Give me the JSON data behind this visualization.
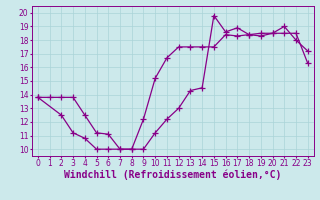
{
  "xlabel": "Windchill (Refroidissement éolien,°C)",
  "bg_color": "#cce9eb",
  "line_color": "#880088",
  "grid_color": "#aad4d8",
  "xlim": [
    -0.5,
    23.5
  ],
  "ylim": [
    9.5,
    20.5
  ],
  "xticks": [
    0,
    1,
    2,
    3,
    4,
    5,
    6,
    7,
    8,
    9,
    10,
    11,
    12,
    13,
    14,
    15,
    16,
    17,
    18,
    19,
    20,
    21,
    22,
    23
  ],
  "yticks": [
    10,
    11,
    12,
    13,
    14,
    15,
    16,
    17,
    18,
    19,
    20
  ],
  "line1_x": [
    0,
    1,
    2,
    3,
    4,
    5,
    6,
    7,
    8,
    9,
    10,
    11,
    12,
    13,
    14,
    15,
    16,
    17,
    18,
    19,
    20,
    21,
    22,
    23
  ],
  "line1_y": [
    13.8,
    13.8,
    13.8,
    13.8,
    12.5,
    11.2,
    11.1,
    10.0,
    10.0,
    10.0,
    11.2,
    12.2,
    13.0,
    14.3,
    14.5,
    19.8,
    18.6,
    18.9,
    18.4,
    18.3,
    18.5,
    19.0,
    18.0,
    17.2
  ],
  "line2_x": [
    0,
    2,
    3,
    4,
    5,
    6,
    7,
    8,
    9,
    10,
    11,
    12,
    13,
    14,
    15,
    16,
    17,
    18,
    19,
    20,
    21,
    22,
    23
  ],
  "line2_y": [
    13.8,
    12.5,
    11.2,
    10.8,
    10.0,
    10.0,
    10.0,
    10.0,
    12.2,
    15.2,
    16.7,
    17.5,
    17.5,
    17.5,
    17.5,
    18.4,
    18.3,
    18.4,
    18.5,
    18.5,
    18.5,
    18.5,
    16.3
  ],
  "marker": "+",
  "markersize": 4,
  "linewidth": 0.9,
  "tick_fontsize": 5.5,
  "xlabel_fontsize": 7.0
}
